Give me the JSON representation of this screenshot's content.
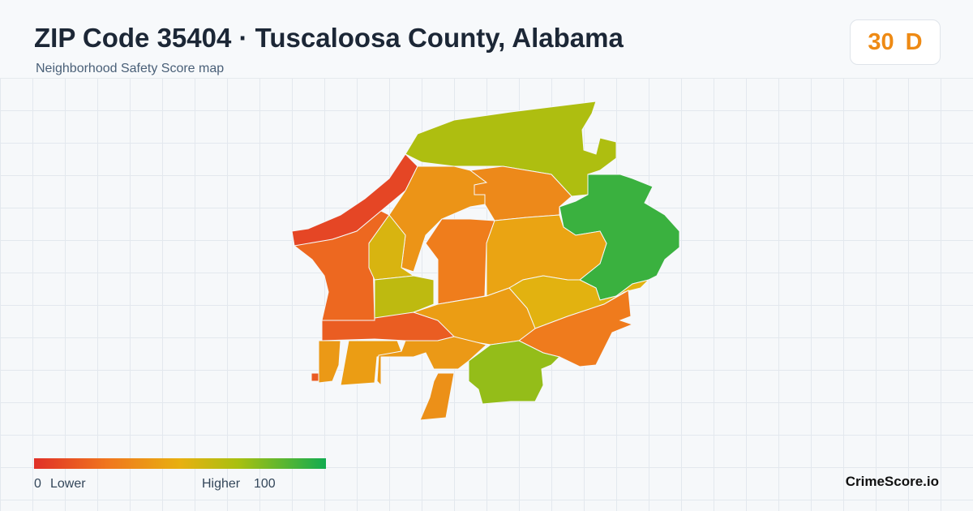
{
  "header": {
    "title": "ZIP Code 35404 · Tuscaloosa County, Alabama",
    "subtitle": "Neighborhood Safety Score map",
    "score": 30,
    "grade": "D"
  },
  "legend": {
    "min": 0,
    "low_label": "Lower",
    "high_label": "Higher",
    "max": 100
  },
  "regions": [
    {
      "score": 68
    },
    {
      "score": 92
    },
    {
      "score": 8
    },
    {
      "score": 20
    },
    {
      "score": 16
    },
    {
      "score": 38
    },
    {
      "score": 33
    },
    {
      "score": 55
    },
    {
      "score": 63
    },
    {
      "score": 28
    },
    {
      "score": 45
    },
    {
      "score": 52
    },
    {
      "score": 27
    },
    {
      "score": 42
    },
    {
      "score": 74
    },
    {
      "score": 40
    },
    {
      "score": 42
    },
    {
      "score": 40
    },
    {
      "score": 36
    },
    {
      "score": 15
    }
  ],
  "footer": {
    "brand": "CrimeScore.io"
  }
}
